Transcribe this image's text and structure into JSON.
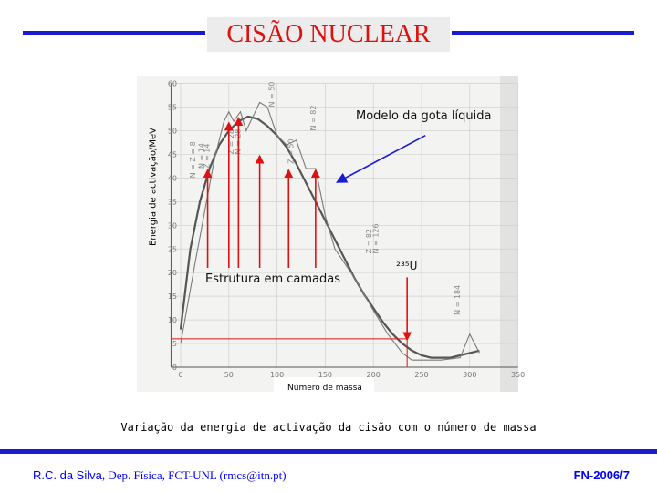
{
  "slide": {
    "title": "CISÃO NUCLEAR",
    "caption": "Variação da energia de activação da cisão com o número de massa",
    "footer": {
      "author_name": "R.C. da Silva",
      "author_rest": ", Dep. Física, FCT-UNL (rmcs@itn.pt)",
      "code": "FN-2006/7"
    },
    "colors": {
      "rule": "#1a1ad0",
      "title": "#e01010",
      "arrow_red": "#e01010",
      "arrow_blue": "#1a1ad0",
      "footer_text": "#0000ff"
    }
  },
  "chart_data": {
    "type": "line",
    "xlabel": "Número de massa",
    "ylabel": "Energia de activação/MeV",
    "xlim": [
      -10,
      350
    ],
    "ylim": [
      0,
      60
    ],
    "x_ticks": [
      "0",
      "50",
      "100",
      "150",
      "200",
      "250",
      "300",
      "350"
    ],
    "y_ticks": [
      "0",
      "5",
      "10",
      "15",
      "20",
      "25",
      "30",
      "35",
      "40",
      "45",
      "50",
      "55",
      "60"
    ],
    "series": [
      {
        "x": [
          0,
          10,
          20,
          30,
          40,
          50,
          60,
          70,
          80,
          90,
          100,
          110,
          120,
          130,
          140,
          150,
          160,
          170,
          180,
          190,
          200,
          210,
          220,
          230,
          240,
          250,
          260,
          270,
          280,
          290,
          300,
          310
        ],
        "y": [
          8,
          25,
          35,
          42,
          47,
          50,
          52,
          53,
          52.5,
          51,
          49,
          46.5,
          43,
          39,
          35,
          31,
          27,
          23,
          19,
          15.5,
          12.5,
          9.5,
          7,
          5,
          3.5,
          2.5,
          2,
          2,
          2,
          2.5,
          3,
          3.5
        ]
      },
      {
        "x": [
          0,
          15,
          25,
          35,
          45,
          50,
          55,
          62,
          68,
          75,
          82,
          90,
          100,
          110,
          120,
          130,
          140,
          150,
          160,
          180,
          200,
          215,
          230,
          240,
          250,
          270,
          290,
          300,
          310
        ],
        "y": [
          5,
          22,
          33,
          44,
          52,
          54,
          52,
          54,
          50,
          53,
          56,
          55,
          49,
          47,
          48,
          42,
          42,
          32,
          25,
          19,
          12,
          7,
          3,
          1.5,
          1.5,
          1.5,
          2,
          7,
          3
        ]
      }
    ],
    "annotations": {
      "magic_labels": [
        "N = Z = 8",
        "N = 14",
        "Z = 14",
        "Z = 28",
        "N = 28",
        "N = 50",
        "Z = 50",
        "N = 82",
        "Z = 82",
        "N = 126",
        "N = 184"
      ],
      "liquid_drop_label": "Modelo da gota líquida",
      "shell_label": "Estrutura em camadas",
      "u235_label": "²³⁵U",
      "u235_x": 235,
      "u235_y": 6
    }
  }
}
